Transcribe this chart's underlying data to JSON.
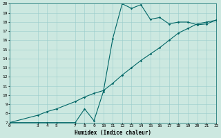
{
  "xlabel": "Humidex (Indice chaleur)",
  "bg_color": "#cce8e0",
  "line_color": "#006666",
  "grid_color": "#99cccc",
  "xlim": [
    0,
    22
  ],
  "ylim": [
    7,
    20
  ],
  "xticks": [
    0,
    3,
    4,
    5,
    7,
    8,
    9,
    10,
    11,
    12,
    13,
    14,
    15,
    16,
    17,
    18,
    19,
    20,
    21,
    22
  ],
  "yticks": [
    7,
    8,
    9,
    10,
    11,
    12,
    13,
    14,
    15,
    16,
    17,
    18,
    19,
    20
  ],
  "line1_x": [
    0,
    3,
    4,
    5,
    7,
    8,
    9,
    10,
    11,
    12,
    13,
    14,
    15,
    16,
    17,
    18,
    19,
    20,
    21,
    22
  ],
  "line1_y": [
    7.0,
    7.0,
    7.0,
    7.0,
    7.0,
    8.5,
    7.2,
    10.4,
    16.2,
    20.0,
    19.5,
    19.9,
    18.3,
    18.5,
    17.8,
    18.0,
    18.0,
    17.7,
    17.8,
    18.2
  ],
  "line2_x": [
    0,
    3,
    4,
    5,
    7,
    8,
    9,
    10,
    11,
    12,
    13,
    14,
    15,
    16,
    17,
    18,
    19,
    20,
    21,
    22
  ],
  "line2_y": [
    7.0,
    7.8,
    8.2,
    8.5,
    9.3,
    9.8,
    10.2,
    10.5,
    11.3,
    12.2,
    13.0,
    13.8,
    14.5,
    15.2,
    16.0,
    16.8,
    17.3,
    17.8,
    18.0,
    18.2
  ]
}
